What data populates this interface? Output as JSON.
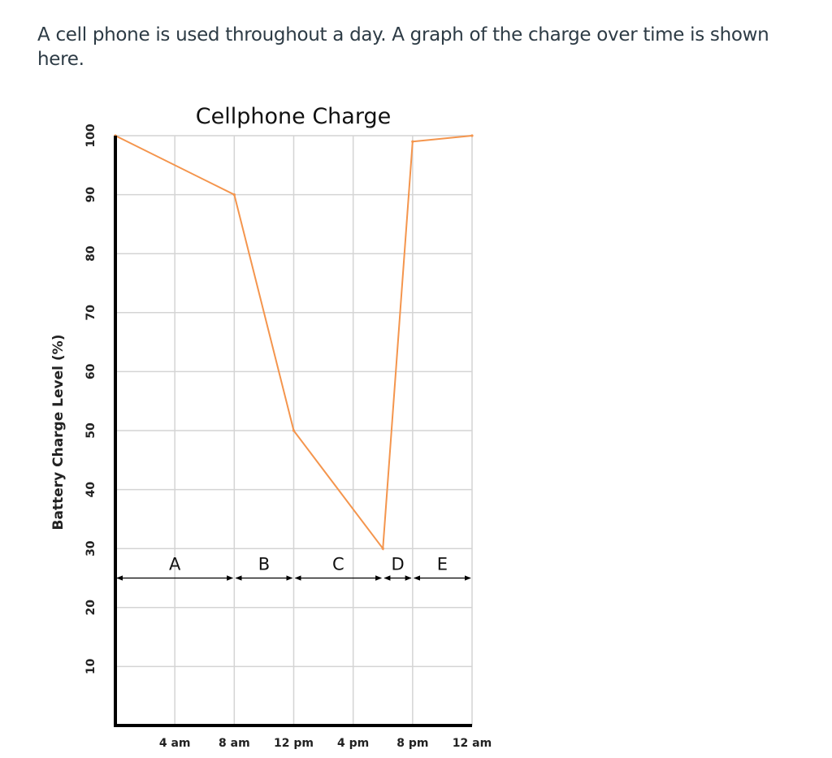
{
  "question": {
    "text": "A cell phone is used throughout a day. A graph of the charge over time is shown here."
  },
  "colors": {
    "line": "#f4954d",
    "grid": "#d4d4d4",
    "axis": "#000000"
  },
  "chart_data": {
    "type": "line",
    "title": "Cellphone Charge",
    "xlabel": "",
    "ylabel": "Battery Charge Level (%)",
    "x_unit": "hours after 12 am",
    "xlim": [
      0,
      24
    ],
    "ylim": [
      0,
      100
    ],
    "y_ticks": [
      10,
      20,
      30,
      40,
      50,
      60,
      70,
      80,
      90,
      100
    ],
    "x_ticks": [
      {
        "x": 4,
        "label": "4 am"
      },
      {
        "x": 8,
        "label": "8 am"
      },
      {
        "x": 12,
        "label": "12 pm"
      },
      {
        "x": 16,
        "label": "4 pm"
      },
      {
        "x": 20,
        "label": "8 pm"
      },
      {
        "x": 24,
        "label": "12 am"
      }
    ],
    "grid": true,
    "legend": "none",
    "series": [
      {
        "points": [
          {
            "x": 0,
            "y": 100
          },
          {
            "x": 8,
            "y": 90
          },
          {
            "x": 12,
            "y": 50
          },
          {
            "x": 18,
            "y": 30
          },
          {
            "x": 20,
            "y": 99
          },
          {
            "x": 24,
            "y": 100
          }
        ]
      }
    ],
    "segments": [
      {
        "label": "A",
        "start": 0,
        "end": 8
      },
      {
        "label": "B",
        "start": 8,
        "end": 12
      },
      {
        "label": "C",
        "start": 12,
        "end": 18
      },
      {
        "label": "D",
        "start": 18,
        "end": 20
      },
      {
        "label": "E",
        "start": 20,
        "end": 24
      }
    ],
    "segment_level": 25
  }
}
